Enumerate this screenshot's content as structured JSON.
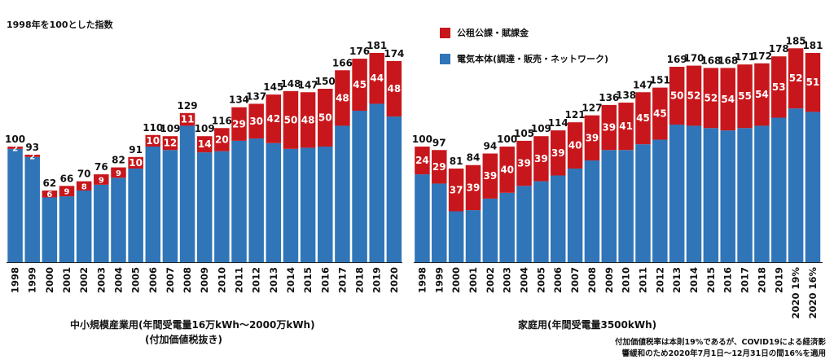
{
  "colors": {
    "base": "#2f75b8",
    "levy": "#c8171c",
    "axis": "#222222"
  },
  "note": "1998年を100とした指数",
  "legend": {
    "levy": "公租公課・賦課金",
    "base": "電気本体(調達・販売・ネットワーク)"
  },
  "captions": {
    "left_line1": "中小規模産業用(年間受電量16万kWh〜2000万kWh)",
    "left_line2": "(付加価値税抜き)",
    "right": "家庭用(年間受電量3500kWh)"
  },
  "footnote": {
    "line1": "付加価値税率は本則19%であるが、COVID19による経済影",
    "line2": "響緩和のため2020年7月1日〜12月31日の間16%を適用"
  },
  "chart_data": [
    {
      "type": "bar",
      "stacked": true,
      "title": "",
      "ylim": [
        0,
        190
      ],
      "categories": [
        "1998",
        "1999",
        "2000",
        "2001",
        "2002",
        "2003",
        "2004",
        "2005",
        "2006",
        "2007",
        "2008",
        "2009",
        "2010",
        "2011",
        "2012",
        "2013",
        "2014",
        "2015",
        "2016",
        "2017",
        "2018",
        "2019",
        "2020"
      ],
      "totals": [
        100,
        93,
        62,
        66,
        70,
        76,
        82,
        91,
        110,
        109,
        129,
        109,
        116,
        134,
        137,
        145,
        148,
        147,
        150,
        166,
        176,
        181,
        174
      ],
      "series": [
        {
          "key": "base",
          "values": [
            98,
            91,
            56,
            57,
            62,
            67,
            73,
            81,
            100,
            97,
            118,
            95,
            96,
            105,
            107,
            103,
            98,
            99,
            100,
            118,
            131,
            137,
            126
          ]
        },
        {
          "key": "levy",
          "values": [
            2,
            2,
            6,
            9,
            8,
            9,
            9,
            10,
            10,
            12,
            11,
            14,
            20,
            29,
            30,
            42,
            50,
            48,
            50,
            48,
            45,
            44,
            48
          ]
        }
      ]
    },
    {
      "type": "bar",
      "stacked": true,
      "title": "",
      "ylim": [
        0,
        190
      ],
      "categories": [
        "1998",
        "1999",
        "2000",
        "2001",
        "2002",
        "2003",
        "2004",
        "2005",
        "2006",
        "2007",
        "2008",
        "2009",
        "2010",
        "2011",
        "2012",
        "2013",
        "2014",
        "2015",
        "2016",
        "2017",
        "2018",
        "2019",
        "2020 19%",
        "2020 16%"
      ],
      "totals": [
        100,
        97,
        81,
        84,
        94,
        100,
        105,
        109,
        114,
        121,
        127,
        136,
        138,
        147,
        151,
        169,
        170,
        168,
        168,
        171,
        172,
        178,
        185,
        181
      ],
      "series": [
        {
          "key": "base",
          "values": [
            76,
            68,
            44,
            45,
            55,
            60,
            66,
            70,
            75,
            81,
            88,
            97,
            97,
            102,
            106,
            119,
            118,
            116,
            114,
            116,
            118,
            125,
            133,
            130
          ]
        },
        {
          "key": "levy",
          "values": [
            24,
            29,
            37,
            39,
            39,
            40,
            39,
            39,
            39,
            40,
            39,
            39,
            41,
            45,
            45,
            50,
            52,
            52,
            54,
            55,
            54,
            53,
            52,
            51
          ]
        }
      ]
    }
  ]
}
